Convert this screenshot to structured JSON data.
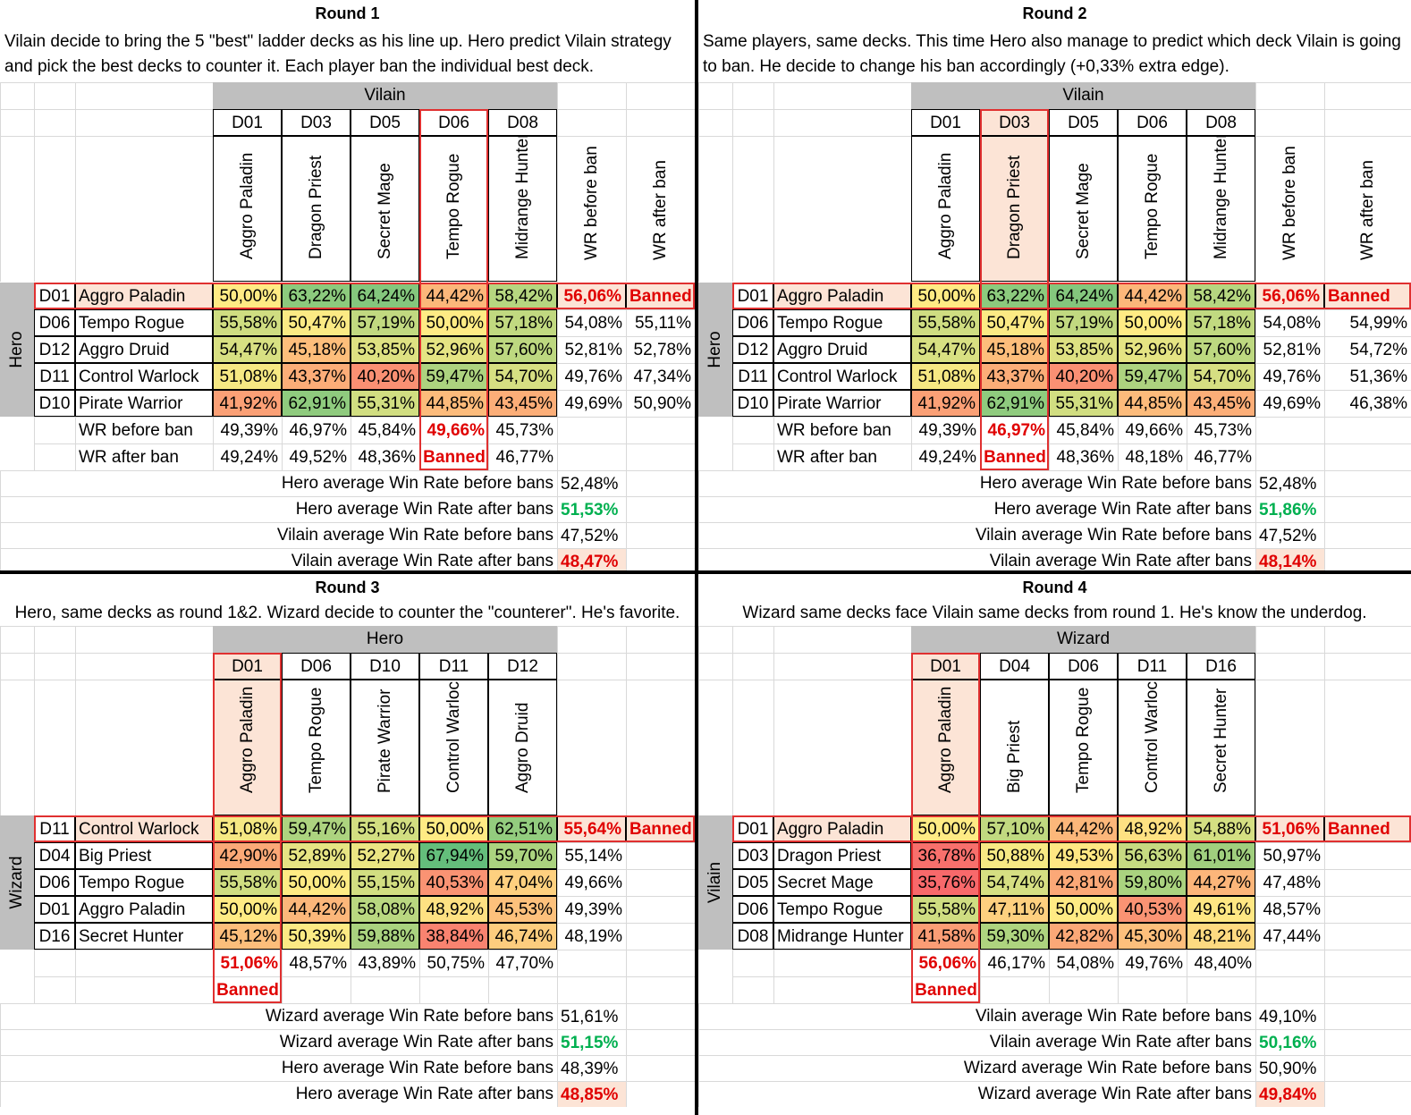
{
  "colors": {
    "band": "#bfbfbf",
    "red": "#e00000",
    "green": "#00b050",
    "highlight": "#fce4d6",
    "border_red": "#e03030"
  },
  "rounds": [
    {
      "title": "Round 1",
      "description": [
        "Vilain decide to bring the 5 \"best\" ladder decks as his line up. Hero predict Vilain strategy",
        "and pick the best decks to counter it. Each player ban the individual best deck."
      ],
      "col_group": "Vilain",
      "row_group": "Hero",
      "col_ids": [
        "D01",
        "D03",
        "D05",
        "D06",
        "D08"
      ],
      "col_names": [
        "Aggro Paladin",
        "Dragon Priest",
        "Secret Mage",
        "Tempo Rogue",
        "Midrange Hunter"
      ],
      "extra_col_labels": [
        "WR before ban",
        "WR after ban"
      ],
      "banned_col": 3,
      "highlight_col": false,
      "rows": [
        {
          "id": "D01",
          "name": "Aggro Paladin",
          "values": [
            "50,00%",
            "63,22%",
            "64,24%",
            "44,42%",
            "58,42%"
          ],
          "wr_before": "56,06%",
          "wr_after": "Banned",
          "banned": true
        },
        {
          "id": "D06",
          "name": "Tempo Rogue",
          "values": [
            "55,58%",
            "50,47%",
            "57,19%",
            "50,00%",
            "57,18%"
          ],
          "wr_before": "54,08%",
          "wr_after": "55,11%",
          "banned": false
        },
        {
          "id": "D12",
          "name": "Aggro Druid",
          "values": [
            "54,47%",
            "45,18%",
            "53,85%",
            "52,96%",
            "57,60%"
          ],
          "wr_before": "52,81%",
          "wr_after": "52,78%",
          "banned": false
        },
        {
          "id": "D11",
          "name": "Control Warlock",
          "values": [
            "51,08%",
            "43,37%",
            "40,20%",
            "59,47%",
            "54,70%"
          ],
          "wr_before": "49,76%",
          "wr_after": "47,34%",
          "banned": false
        },
        {
          "id": "D10",
          "name": "Pirate Warrior",
          "values": [
            "41,92%",
            "62,91%",
            "55,31%",
            "44,85%",
            "43,45%"
          ],
          "wr_before": "49,69%",
          "wr_after": "50,90%",
          "banned": false
        }
      ],
      "footer_rows": [
        {
          "label": "WR before ban",
          "values": [
            "49,39%",
            "46,97%",
            "45,84%",
            "49,66%",
            "45,73%"
          ]
        },
        {
          "label": "WR after ban",
          "values": [
            "49,24%",
            "49,52%",
            "48,36%",
            "Banned",
            "46,77%"
          ]
        }
      ],
      "stats": [
        {
          "label": "Hero average Win Rate before bans",
          "value": "52,48%",
          "style": "plain"
        },
        {
          "label": "Hero average Win Rate after bans",
          "value": "51,53%",
          "style": "green"
        },
        {
          "label": "Vilain average Win Rate before bans",
          "value": "47,52%",
          "style": "plain"
        },
        {
          "label": "Vilain average Win Rate after bans",
          "value": "48,47%",
          "style": "red"
        }
      ]
    },
    {
      "title": "Round 2",
      "description": [
        "Same players, same decks. This time Hero also manage to predict which deck Vilain is going",
        "to ban. He decide to change his ban accordingly (+0,33% extra edge)."
      ],
      "col_group": "Vilain",
      "row_group": "Hero",
      "col_ids": [
        "D01",
        "D03",
        "D05",
        "D06",
        "D08"
      ],
      "col_names": [
        "Aggro Paladin",
        "Dragon Priest",
        "Secret Mage",
        "Tempo Rogue",
        "Midrange Hunter"
      ],
      "extra_col_labels": [
        "WR before ban",
        "WR after ban"
      ],
      "banned_col": 1,
      "highlight_col": true,
      "rows": [
        {
          "id": "D01",
          "name": "Aggro Paladin",
          "values": [
            "50,00%",
            "63,22%",
            "64,24%",
            "44,42%",
            "58,42%"
          ],
          "wr_before": "56,06%",
          "wr_after": "Banned",
          "banned": true
        },
        {
          "id": "D06",
          "name": "Tempo Rogue",
          "values": [
            "55,58%",
            "50,47%",
            "57,19%",
            "50,00%",
            "57,18%"
          ],
          "wr_before": "54,08%",
          "wr_after": "54,99%",
          "banned": false
        },
        {
          "id": "D12",
          "name": "Aggro Druid",
          "values": [
            "54,47%",
            "45,18%",
            "53,85%",
            "52,96%",
            "57,60%"
          ],
          "wr_before": "52,81%",
          "wr_after": "54,72%",
          "banned": false
        },
        {
          "id": "D11",
          "name": "Control Warlock",
          "values": [
            "51,08%",
            "43,37%",
            "40,20%",
            "59,47%",
            "54,70%"
          ],
          "wr_before": "49,76%",
          "wr_after": "51,36%",
          "banned": false
        },
        {
          "id": "D10",
          "name": "Pirate Warrior",
          "values": [
            "41,92%",
            "62,91%",
            "55,31%",
            "44,85%",
            "43,45%"
          ],
          "wr_before": "49,69%",
          "wr_after": "46,38%",
          "banned": false
        }
      ],
      "footer_rows": [
        {
          "label": "WR before ban",
          "values": [
            "49,39%",
            "46,97%",
            "45,84%",
            "49,66%",
            "45,73%"
          ]
        },
        {
          "label": "WR after ban",
          "values": [
            "49,24%",
            "Banned",
            "48,36%",
            "48,18%",
            "46,77%"
          ]
        }
      ],
      "stats": [
        {
          "label": "Hero average Win Rate before bans",
          "value": "52,48%",
          "style": "plain"
        },
        {
          "label": "Hero average Win Rate after bans",
          "value": "51,86%",
          "style": "green"
        },
        {
          "label": "Vilain average Win Rate before bans",
          "value": "47,52%",
          "style": "plain"
        },
        {
          "label": "Vilain average Win Rate after bans",
          "value": "48,14%",
          "style": "red"
        }
      ]
    },
    {
      "title": "Round 3",
      "description": [
        "Hero, same decks as round 1&2. Wizard decide to counter the \"counterer\". He's favorite."
      ],
      "col_group": "Hero",
      "row_group": "Wizard",
      "col_ids": [
        "D01",
        "D06",
        "D10",
        "D11",
        "D12"
      ],
      "col_names": [
        "Aggro Paladin",
        "Tempo Rogue",
        "Pirate Warrior",
        "Control Warlock",
        "Aggro Druid"
      ],
      "extra_col_labels": [
        "",
        ""
      ],
      "banned_col": 0,
      "highlight_col": true,
      "rows": [
        {
          "id": "D11",
          "name": "Control Warlock",
          "values": [
            "51,08%",
            "59,47%",
            "55,16%",
            "50,00%",
            "62,51%"
          ],
          "wr_before": "55,64%",
          "wr_after": "Banned",
          "banned": true
        },
        {
          "id": "D04",
          "name": "Big Priest",
          "values": [
            "42,90%",
            "52,89%",
            "52,27%",
            "67,94%",
            "59,70%"
          ],
          "wr_before": "55,14%",
          "wr_after": "",
          "banned": false
        },
        {
          "id": "D06",
          "name": "Tempo Rogue",
          "values": [
            "55,58%",
            "50,00%",
            "55,15%",
            "40,53%",
            "47,04%"
          ],
          "wr_before": "49,66%",
          "wr_after": "",
          "banned": false
        },
        {
          "id": "D01",
          "name": "Aggro Paladin",
          "values": [
            "50,00%",
            "44,42%",
            "58,08%",
            "48,92%",
            "45,53%"
          ],
          "wr_before": "49,39%",
          "wr_after": "",
          "banned": false
        },
        {
          "id": "D16",
          "name": "Secret Hunter",
          "values": [
            "45,12%",
            "50,39%",
            "59,88%",
            "38,84%",
            "46,74%"
          ],
          "wr_before": "48,19%",
          "wr_after": "",
          "banned": false
        }
      ],
      "footer_rows": [
        {
          "label": "",
          "values": [
            "51,06%",
            "48,57%",
            "43,89%",
            "50,75%",
            "47,70%"
          ]
        },
        {
          "label": "",
          "values": [
            "Banned",
            "",
            "",
            "",
            ""
          ]
        }
      ],
      "stats": [
        {
          "label": "Wizard average Win Rate before bans",
          "value": "51,61%",
          "style": "plain"
        },
        {
          "label": "Wizard average Win Rate after bans",
          "value": "51,15%",
          "style": "green"
        },
        {
          "label": "Hero average Win Rate before bans",
          "value": "48,39%",
          "style": "plain"
        },
        {
          "label": "Hero average Win Rate after bans",
          "value": "48,85%",
          "style": "red"
        }
      ]
    },
    {
      "title": "Round 4",
      "description": [
        "Wizard same decks face Vilain same decks from round 1. He's know the underdog."
      ],
      "col_group": "Wizard",
      "row_group": "Vilain",
      "col_ids": [
        "D01",
        "D04",
        "D06",
        "D11",
        "D16"
      ],
      "col_names": [
        "Aggro Paladin",
        "Big Priest",
        "Tempo Rogue",
        "Control Warlock",
        "Secret Hunter"
      ],
      "extra_col_labels": [
        "",
        ""
      ],
      "banned_col": 0,
      "highlight_col": true,
      "rows": [
        {
          "id": "D01",
          "name": "Aggro Paladin",
          "values": [
            "50,00%",
            "57,10%",
            "44,42%",
            "48,92%",
            "54,88%"
          ],
          "wr_before": "51,06%",
          "wr_after": "Banned",
          "banned": true
        },
        {
          "id": "D03",
          "name": "Dragon Priest",
          "values": [
            "36,78%",
            "50,88%",
            "49,53%",
            "56,63%",
            "61,01%"
          ],
          "wr_before": "50,97%",
          "wr_after": "",
          "banned": false
        },
        {
          "id": "D05",
          "name": "Secret Mage",
          "values": [
            "35,76%",
            "54,74%",
            "42,81%",
            "59,80%",
            "44,27%"
          ],
          "wr_before": "47,48%",
          "wr_after": "",
          "banned": false
        },
        {
          "id": "D06",
          "name": "Tempo Rogue",
          "values": [
            "55,58%",
            "47,11%",
            "50,00%",
            "40,53%",
            "49,61%"
          ],
          "wr_before": "48,57%",
          "wr_after": "",
          "banned": false
        },
        {
          "id": "D08",
          "name": "Midrange Hunter",
          "values": [
            "41,58%",
            "59,30%",
            "42,82%",
            "45,30%",
            "48,21%"
          ],
          "wr_before": "47,44%",
          "wr_after": "",
          "banned": false
        }
      ],
      "footer_rows": [
        {
          "label": "",
          "values": [
            "56,06%",
            "46,17%",
            "54,08%",
            "49,76%",
            "48,40%"
          ]
        },
        {
          "label": "",
          "values": [
            "Banned",
            "",
            "",
            "",
            ""
          ]
        }
      ],
      "stats": [
        {
          "label": "Vilain average Win Rate before bans",
          "value": "49,10%",
          "style": "plain"
        },
        {
          "label": "Vilain average Win Rate after bans",
          "value": "50,16%",
          "style": "green"
        },
        {
          "label": "Wizard average Win Rate before bans",
          "value": "50,90%",
          "style": "plain"
        },
        {
          "label": "Wizard average Win Rate after bans",
          "value": "49,84%",
          "style": "red"
        }
      ]
    }
  ]
}
